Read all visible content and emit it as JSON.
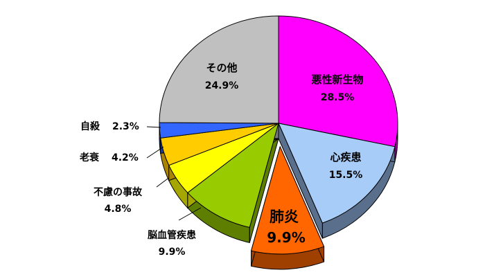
{
  "chart_data": {
    "type": "pie",
    "style": "3d-exploded",
    "start": "12 o'clock, clockwise",
    "exploded": [
      "肺炎"
    ],
    "slices": [
      {
        "name": "悪性新生物",
        "value": 28.5,
        "label": "28.5%",
        "color": "#FF00FF",
        "side": "#A000A0"
      },
      {
        "name": "心疾患",
        "value": 15.5,
        "label": "15.5%",
        "color": "#A8CCF8",
        "side": "#5A6F8C"
      },
      {
        "name": "肺炎",
        "value": 9.9,
        "label": "9.9%",
        "color": "#FF6600",
        "side": "#A04000"
      },
      {
        "name": "脳血管疾患",
        "value": 9.9,
        "label": "9.9%",
        "color": "#99CC00",
        "side": "#5E7E00"
      },
      {
        "name": "不慮の事故",
        "value": 4.8,
        "label": "4.8%",
        "color": "#FFFF00",
        "side": "#A6A600"
      },
      {
        "name": "老衰",
        "value": 4.2,
        "label": "4.2%",
        "color": "#FFCC00",
        "side": "#A88400"
      },
      {
        "name": "自殺",
        "value": 2.3,
        "label": "2.3%",
        "color": "#3366FF",
        "side": "#1F3D99"
      },
      {
        "name": "その他",
        "value": 24.9,
        "label": "24.9%",
        "color": "#C0C0C0",
        "side": "#7A7A7A"
      }
    ]
  }
}
